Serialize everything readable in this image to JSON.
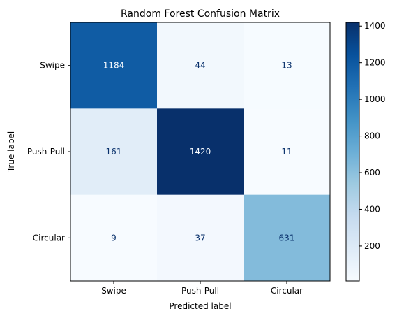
{
  "chart_data": {
    "type": "heatmap",
    "title": "Random Forest Confusion Matrix",
    "xlabel": "Predicted label",
    "ylabel": "True label",
    "x_categories": [
      "Swipe",
      "Push-Pull",
      "Circular"
    ],
    "y_categories": [
      "Swipe",
      "Push-Pull",
      "Circular"
    ],
    "values": [
      [
        1184,
        44,
        13
      ],
      [
        161,
        1420,
        11
      ],
      [
        9,
        37,
        631
      ]
    ],
    "colormap": "Blues",
    "colorbar": {
      "min": 9,
      "max": 1420,
      "ticks": [
        200,
        400,
        600,
        800,
        1000,
        1200,
        1400
      ]
    },
    "text_color_dark": "#08306b",
    "text_color_light": "#f7fbff",
    "grid": false
  }
}
